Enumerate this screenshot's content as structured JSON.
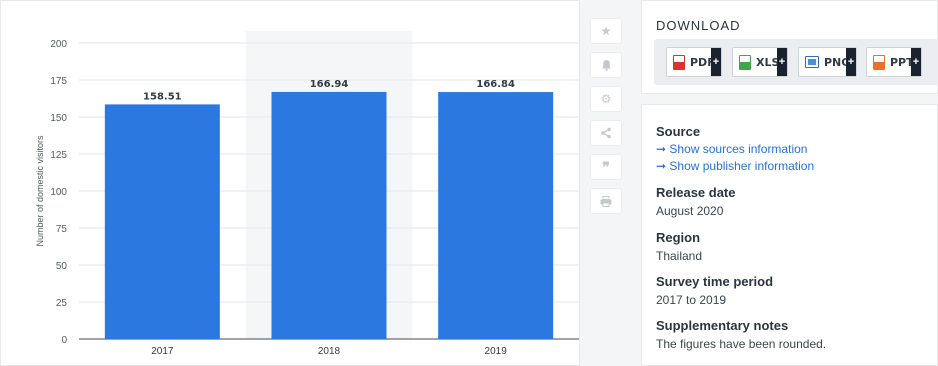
{
  "chart_data": {
    "type": "bar",
    "categories": [
      "2017",
      "2018",
      "2019"
    ],
    "values": [
      158.51,
      166.94,
      166.84
    ],
    "data_labels": [
      "158.51",
      "166.94",
      "166.84"
    ],
    "ylabel": "Number of domestic visitors",
    "xlabel": "",
    "ylim": [
      0,
      200
    ],
    "yticks": [
      "0",
      "25",
      "50",
      "75",
      "100",
      "125",
      "150",
      "175",
      "200"
    ],
    "grid": true,
    "bar_color": "#2b78e0",
    "highlighted_category": "2018"
  },
  "toolbar": {
    "icons": [
      "star-icon",
      "bell-icon",
      "gear-icon",
      "share-icon",
      "quote-icon",
      "print-icon"
    ]
  },
  "download": {
    "title": "DOWNLOAD",
    "buttons": [
      {
        "label": "PDF",
        "plus": "+",
        "icon_color": "#d9342b"
      },
      {
        "label": "XLS",
        "plus": "+",
        "icon_color": "#3fa64b"
      },
      {
        "label": "PNG",
        "plus": "+",
        "icon_color": "#2f6db5"
      },
      {
        "label": "PPT",
        "plus": "+",
        "icon_color": "#e8722b"
      }
    ]
  },
  "info": {
    "source_heading": "Source",
    "source_link_1": "➞ Show sources information",
    "source_link_2": "➞ Show publisher information",
    "release_heading": "Release date",
    "release_value": "August 2020",
    "region_heading": "Region",
    "region_value": "Thailand",
    "survey_heading": "Survey time period",
    "survey_value": "2017 to 2019",
    "notes_heading": "Supplementary notes",
    "notes_value": "The figures have been rounded."
  }
}
